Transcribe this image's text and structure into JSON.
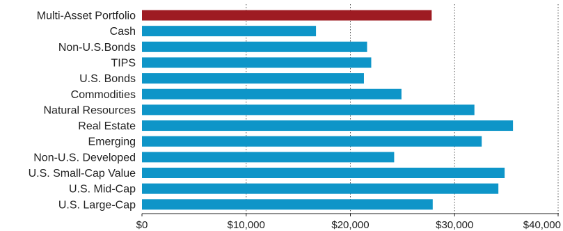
{
  "chart_data": {
    "type": "bar",
    "orientation": "horizontal",
    "title": "",
    "xlabel": "",
    "ylabel": "",
    "xlim": [
      0,
      40000
    ],
    "grid": "vertical-dotted",
    "tick_values": [
      0,
      10000,
      20000,
      30000,
      40000
    ],
    "tick_labels": [
      "$0",
      "$10,000",
      "$20,000",
      "$30,000",
      "$40,000"
    ],
    "categories": [
      "Multi-Asset Portfolio",
      "Cash",
      "Non-U.S.Bonds",
      "TIPS",
      "U.S. Bonds",
      "Commodities",
      "Natural Resources",
      "Real Estate",
      "Emerging",
      "Non-U.S. Developed",
      "U.S. Small-Cap Value",
      "U.S. Mid-Cap",
      "U.S. Large-Cap"
    ],
    "values": [
      27800,
      16700,
      21600,
      22000,
      21300,
      24900,
      31900,
      35600,
      32600,
      24200,
      34800,
      34200,
      27900
    ],
    "colors": {
      "highlight": "#9e1b22",
      "bar": "#0e95c8",
      "grid": "#555555",
      "axis": "#222222",
      "text": "#222222"
    },
    "highlight_index": 0
  }
}
